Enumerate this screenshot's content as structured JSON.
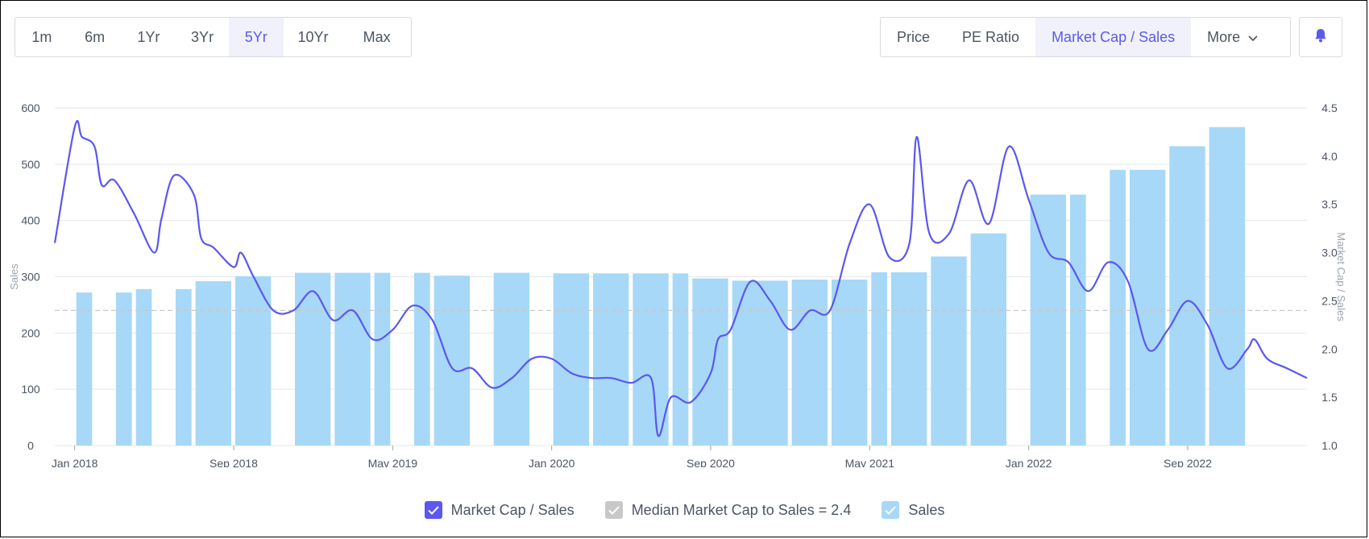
{
  "range_buttons": [
    "1m",
    "6m",
    "1Yr",
    "3Yr",
    "5Yr",
    "10Yr",
    "Max"
  ],
  "range_active": "5Yr",
  "metric_buttons": {
    "price": "Price",
    "pe_ratio": "PE Ratio",
    "mcap_sales": "Market Cap / Sales",
    "more": "More"
  },
  "metric_active": "Market Cap / Sales",
  "icons": {
    "alert": "bell-icon",
    "dropdown": "chevron-down-icon",
    "check": "check-icon"
  },
  "colors": {
    "accent": "#5b5bea",
    "line": "#5b57f0",
    "bars": "#a7d8f7",
    "median": "#c8c8c8",
    "grid": "#e5e7eb"
  },
  "legend": {
    "mcap_sales": "Market Cap / Sales",
    "median": "Median Market Cap to Sales = 2.4",
    "sales": "Sales"
  },
  "chart_data": {
    "type": "bar+line",
    "left_axis": {
      "label": "Sales",
      "ticks": [
        "0",
        "100",
        "200",
        "300",
        "400",
        "500",
        "600"
      ],
      "range": [
        0,
        600
      ]
    },
    "right_axis": {
      "label": "Market Cap / Sales",
      "ticks": [
        "1.0",
        "1.5",
        "2.0",
        "2.5",
        "3.0",
        "3.5",
        "4.0",
        "4.5"
      ],
      "range": [
        1.0,
        4.5
      ]
    },
    "x_ticks": [
      "Jan 2018",
      "Sep 2018",
      "May 2019",
      "Jan 2020",
      "Sep 2020",
      "May 2021",
      "Jan 2022",
      "Sep 2022"
    ],
    "x_range": [
      "2017-12",
      "2022-12"
    ],
    "grid": true,
    "legend_position": "bottom-center",
    "median_value": 2.4,
    "bars": {
      "name": "Sales",
      "items": [
        {
          "from": "2018-01",
          "to": "2018-02",
          "value": 272
        },
        {
          "from": "2018-03",
          "to": "2018-04",
          "value": 272
        },
        {
          "from": "2018-04",
          "to": "2018-05",
          "value": 278
        },
        {
          "from": "2018-06",
          "to": "2018-07",
          "value": 278
        },
        {
          "from": "2018-07",
          "to": "2018-09",
          "value": 292
        },
        {
          "from": "2018-09",
          "to": "2018-11",
          "value": 301
        },
        {
          "from": "2018-12",
          "to": "2019-02",
          "value": 307
        },
        {
          "from": "2019-02",
          "to": "2019-04",
          "value": 307
        },
        {
          "from": "2019-04",
          "to": "2019-05",
          "value": 307
        },
        {
          "from": "2019-06",
          "to": "2019-07",
          "value": 307
        },
        {
          "from": "2019-07",
          "to": "2019-09",
          "value": 302
        },
        {
          "from": "2019-10",
          "to": "2019-12",
          "value": 307
        },
        {
          "from": "2020-01",
          "to": "2020-03",
          "value": 306
        },
        {
          "from": "2020-03",
          "to": "2020-05",
          "value": 306
        },
        {
          "from": "2020-05",
          "to": "2020-07",
          "value": 306
        },
        {
          "from": "2020-07",
          "to": "2020-08",
          "value": 306
        },
        {
          "from": "2020-08",
          "to": "2020-10",
          "value": 297
        },
        {
          "from": "2020-10",
          "to": "2021-01",
          "value": 293
        },
        {
          "from": "2021-01",
          "to": "2021-03",
          "value": 295
        },
        {
          "from": "2021-03",
          "to": "2021-05",
          "value": 295
        },
        {
          "from": "2021-05",
          "to": "2021-06",
          "value": 308
        },
        {
          "from": "2021-06",
          "to": "2021-08",
          "value": 308
        },
        {
          "from": "2021-08",
          "to": "2021-10",
          "value": 336
        },
        {
          "from": "2021-10",
          "to": "2021-12",
          "value": 377
        },
        {
          "from": "2022-01",
          "to": "2022-03",
          "value": 446
        },
        {
          "from": "2022-03",
          "to": "2022-04",
          "value": 446
        },
        {
          "from": "2022-05",
          "to": "2022-06",
          "value": 490
        },
        {
          "from": "2022-06",
          "to": "2022-08",
          "value": 490
        },
        {
          "from": "2022-08",
          "to": "2022-10",
          "value": 532
        },
        {
          "from": "2022-10",
          "to": "2022-12",
          "value": 566
        }
      ]
    },
    "line": {
      "name": "Market Cap / Sales",
      "points": [
        [
          "2017-12",
          3.1
        ],
        [
          "2018-01",
          4.3
        ],
        [
          "2018-01",
          4.2
        ],
        [
          "2018-02",
          4.1
        ],
        [
          "2018-02",
          3.7
        ],
        [
          "2018-03",
          3.75
        ],
        [
          "2018-04",
          3.4
        ],
        [
          "2018-05",
          3.0
        ],
        [
          "2018-05",
          3.35
        ],
        [
          "2018-06",
          3.8
        ],
        [
          "2018-07",
          3.6
        ],
        [
          "2018-07",
          3.15
        ],
        [
          "2018-08",
          3.05
        ],
        [
          "2018-09",
          2.85
        ],
        [
          "2018-09",
          3.0
        ],
        [
          "2018-10",
          2.75
        ],
        [
          "2018-11",
          2.4
        ],
        [
          "2018-12",
          2.4
        ],
        [
          "2019-01",
          2.6
        ],
        [
          "2019-02",
          2.3
        ],
        [
          "2019-03",
          2.4
        ],
        [
          "2019-04",
          2.1
        ],
        [
          "2019-05",
          2.2
        ],
        [
          "2019-06",
          2.45
        ],
        [
          "2019-07",
          2.3
        ],
        [
          "2019-08",
          1.8
        ],
        [
          "2019-09",
          1.8
        ],
        [
          "2019-10",
          1.6
        ],
        [
          "2019-11",
          1.7
        ],
        [
          "2019-12",
          1.9
        ],
        [
          "2020-01",
          1.9
        ],
        [
          "2020-02",
          1.75
        ],
        [
          "2020-03",
          1.7
        ],
        [
          "2020-04",
          1.7
        ],
        [
          "2020-05",
          1.65
        ],
        [
          "2020-06",
          1.7
        ],
        [
          "2020-06",
          1.1
        ],
        [
          "2020-07",
          1.5
        ],
        [
          "2020-08",
          1.45
        ],
        [
          "2020-09",
          1.75
        ],
        [
          "2020-09",
          2.1
        ],
        [
          "2020-10",
          2.2
        ],
        [
          "2020-11",
          2.7
        ],
        [
          "2020-12",
          2.5
        ],
        [
          "2021-01",
          2.2
        ],
        [
          "2021-02",
          2.4
        ],
        [
          "2021-03",
          2.4
        ],
        [
          "2021-04",
          3.1
        ],
        [
          "2021-05",
          3.5
        ],
        [
          "2021-06",
          2.95
        ],
        [
          "2021-07",
          3.1
        ],
        [
          "2021-07",
          4.2
        ],
        [
          "2021-08",
          3.2
        ],
        [
          "2021-09",
          3.2
        ],
        [
          "2021-10",
          3.75
        ],
        [
          "2021-11",
          3.3
        ],
        [
          "2021-12",
          4.1
        ],
        [
          "2022-01",
          3.55
        ],
        [
          "2022-02",
          3.0
        ],
        [
          "2022-03",
          2.9
        ],
        [
          "2022-04",
          2.6
        ],
        [
          "2022-05",
          2.9
        ],
        [
          "2022-06",
          2.7
        ],
        [
          "2022-07",
          2.0
        ],
        [
          "2022-08",
          2.2
        ],
        [
          "2022-09",
          2.5
        ],
        [
          "2022-10",
          2.25
        ],
        [
          "2022-11",
          1.8
        ],
        [
          "2022-12",
          2.0
        ],
        [
          "2022-12",
          2.1
        ],
        [
          "2023-01",
          1.9
        ],
        [
          "2023-02",
          1.8
        ],
        [
          "2023-03",
          1.7
        ]
      ]
    }
  }
}
